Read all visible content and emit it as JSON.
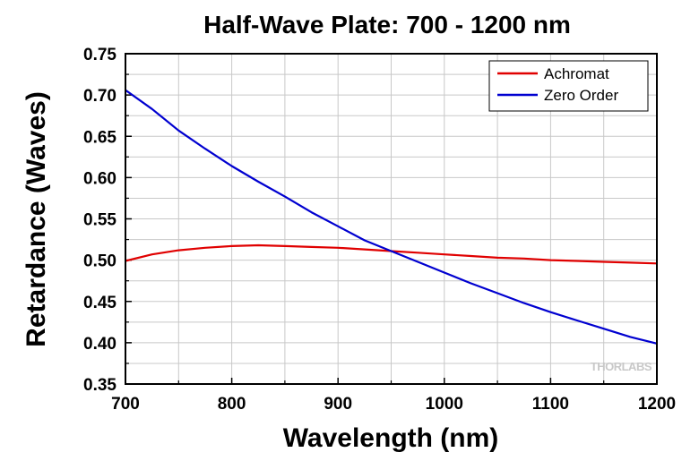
{
  "chart_data": {
    "type": "line",
    "title": "Half-Wave Plate: 700 - 1200 nm",
    "xlabel": "Wavelength (nm)",
    "ylabel": "Retardance (Waves)",
    "xlim": [
      700,
      1200
    ],
    "ylim": [
      0.35,
      0.75
    ],
    "xticks": [
      700,
      800,
      900,
      1000,
      1100,
      1200
    ],
    "yticks": [
      "0.35",
      "0.40",
      "0.45",
      "0.50",
      "0.55",
      "0.60",
      "0.65",
      "0.70",
      "0.75"
    ],
    "grid": true,
    "legend_position": "top-right",
    "series": [
      {
        "name": "Achromat",
        "color": "#e00000",
        "x": [
          700,
          725,
          750,
          775,
          800,
          825,
          850,
          875,
          900,
          925,
          950,
          975,
          1000,
          1025,
          1050,
          1075,
          1100,
          1125,
          1150,
          1175,
          1200
        ],
        "y": [
          0.499,
          0.507,
          0.512,
          0.515,
          0.517,
          0.518,
          0.517,
          0.516,
          0.515,
          0.513,
          0.511,
          0.509,
          0.507,
          0.505,
          0.503,
          0.502,
          0.5,
          0.499,
          0.498,
          0.497,
          0.496
        ]
      },
      {
        "name": "Zero Order",
        "color": "#0000d0",
        "x": [
          700,
          725,
          750,
          775,
          800,
          825,
          850,
          875,
          900,
          925,
          950,
          975,
          1000,
          1025,
          1050,
          1075,
          1100,
          1125,
          1150,
          1175,
          1200
        ],
        "y": [
          0.706,
          0.683,
          0.657,
          0.635,
          0.614,
          0.595,
          0.577,
          0.558,
          0.541,
          0.524,
          0.511,
          0.498,
          0.485,
          0.472,
          0.46,
          0.448,
          0.437,
          0.427,
          0.417,
          0.407,
          0.399
        ]
      }
    ]
  },
  "watermark": "THORLABS"
}
